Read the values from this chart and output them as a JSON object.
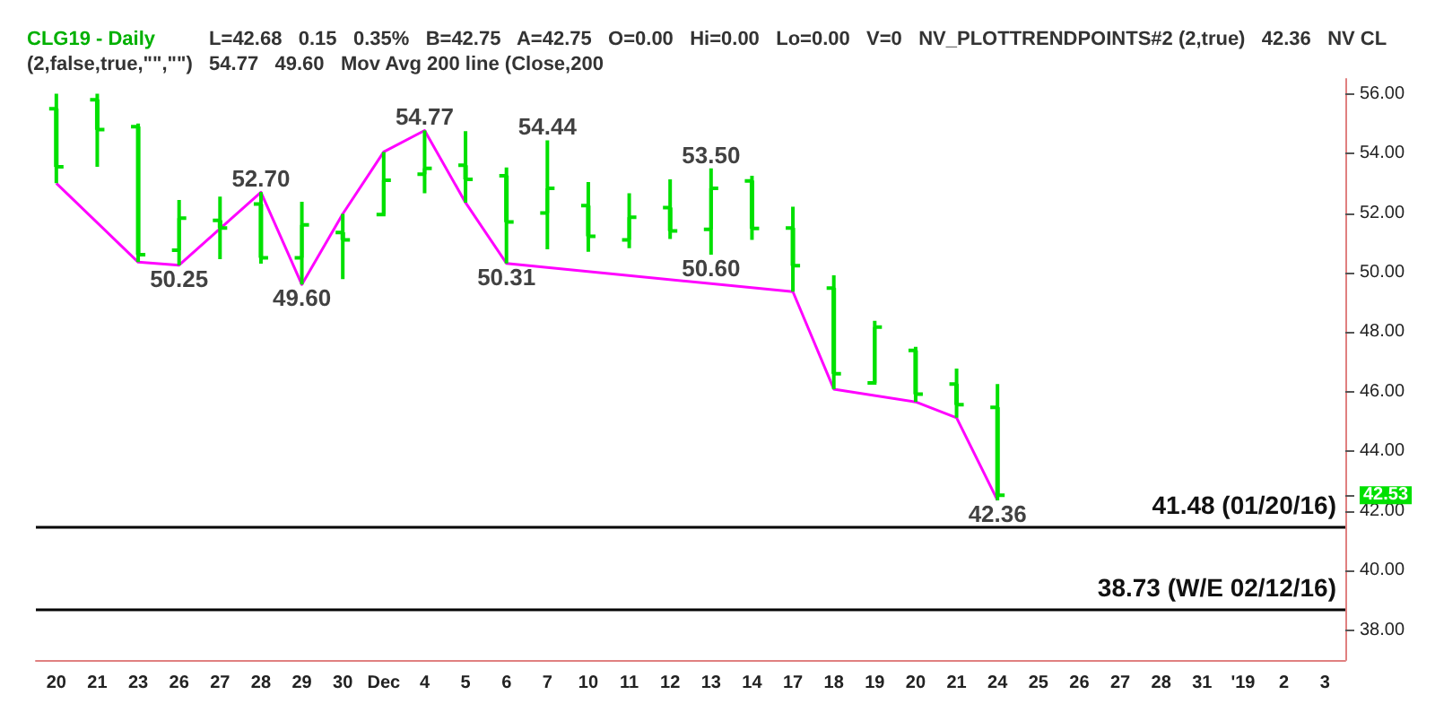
{
  "chart_data": {
    "type": "candlestick",
    "title": "CLG19 - Daily",
    "categories": [
      "20",
      "21",
      "23",
      "26",
      "27",
      "28",
      "29",
      "30",
      "Dec",
      "4",
      "5",
      "6",
      "7",
      "10",
      "11",
      "12",
      "13",
      "14",
      "17",
      "18",
      "19",
      "20",
      "21",
      "24",
      "25",
      "26",
      "27",
      "28",
      "31",
      "'19",
      "2",
      "3"
    ],
    "series": [
      {
        "color": "#00e000",
        "ohlc": [
          [
            55.5,
            56.0,
            53.0,
            53.55
          ],
          [
            55.8,
            56.0,
            53.55,
            54.8
          ],
          [
            54.9,
            55.0,
            50.35,
            50.6
          ],
          [
            50.75,
            52.44,
            50.25,
            51.83
          ],
          [
            51.75,
            52.55,
            50.45,
            51.5
          ],
          [
            52.3,
            52.7,
            50.3,
            50.5
          ],
          [
            50.5,
            52.38,
            49.6,
            51.6
          ],
          [
            51.35,
            51.97,
            49.78,
            51.1
          ],
          [
            51.95,
            54.05,
            51.9,
            53.1
          ],
          [
            53.3,
            54.77,
            52.66,
            53.5
          ],
          [
            53.6,
            54.75,
            52.35,
            53.13
          ],
          [
            53.25,
            53.53,
            50.31,
            51.7
          ],
          [
            52.0,
            54.44,
            50.78,
            52.83
          ],
          [
            52.25,
            53.04,
            50.7,
            51.22
          ],
          [
            51.1,
            52.66,
            50.82,
            51.86
          ],
          [
            52.18,
            53.13,
            51.13,
            51.4
          ],
          [
            51.45,
            53.5,
            50.6,
            52.83
          ],
          [
            53.08,
            53.25,
            51.1,
            51.48
          ],
          [
            51.5,
            52.21,
            49.36,
            50.23
          ],
          [
            49.48,
            49.91,
            46.09,
            46.61
          ],
          [
            46.3,
            48.38,
            46.28,
            48.17
          ],
          [
            47.39,
            47.51,
            45.66,
            45.92
          ],
          [
            46.26,
            46.78,
            45.13,
            45.57
          ],
          [
            45.48,
            46.26,
            42.36,
            42.53
          ],
          null,
          null,
          null,
          null,
          null,
          null,
          null,
          null
        ]
      },
      {
        "type": "line",
        "color": "#ff00ff",
        "values": [
          53.0,
          null,
          50.35,
          50.25,
          null,
          52.7,
          49.6,
          51.97,
          54.05,
          54.77,
          52.35,
          50.31,
          null,
          null,
          null,
          null,
          null,
          null,
          49.36,
          46.09,
          null,
          45.66,
          45.13,
          42.36,
          null,
          null,
          null,
          null,
          null,
          null,
          null,
          null
        ]
      }
    ],
    "marker": "none",
    "ylim": [
      37,
      56.5
    ],
    "yticks": [
      {
        "value": 38,
        "label": "38.00"
      },
      {
        "value": 40,
        "label": "40.00"
      },
      {
        "value": 42,
        "label": "42.00"
      },
      {
        "value": 42.53,
        "label": "42.53"
      },
      {
        "value": 44,
        "label": "44.00"
      },
      {
        "value": 46,
        "label": "46.00"
      },
      {
        "value": 48,
        "label": "48.00"
      },
      {
        "value": 50,
        "label": "50.00"
      },
      {
        "value": 52,
        "label": "52.00"
      },
      {
        "value": 54,
        "label": "54.00"
      },
      {
        "value": 56,
        "label": "56.00"
      }
    ],
    "ref_lines": [
      {
        "axis": "y",
        "value": 41.48,
        "label": "41.48 (01/20/16)",
        "color": "#000000"
      },
      {
        "axis": "y",
        "value": 38.73,
        "label": "38.73 (W/E 02/12/16)",
        "color": "#000000"
      }
    ],
    "annotations": [
      "L=42.68",
      "0.15",
      "0.35%",
      "B=42.75",
      "A=42.75",
      "O=0.00",
      "Hi=0.00",
      "Lo=0.00",
      "V=0",
      "NV_PLOTTRENDPOINTS#2 (2,true)",
      "42.36",
      "NV CL (2,false,true,\"\",\"\")",
      "54.77",
      "49.60",
      "Mov Avg 200 line (Close,200",
      {
        "text": "50.25",
        "x": "26",
        "y": 50.25
      },
      {
        "text": "52.70",
        "x": "28",
        "y": 52.7
      },
      {
        "text": "49.60",
        "x": "29",
        "y": 49.6
      },
      {
        "text": "54.77",
        "x": "4",
        "y": 54.77
      },
      {
        "text": "50.31",
        "x": "6",
        "y": 50.31
      },
      {
        "text": "54.44",
        "x": "7",
        "y": 54.44
      },
      {
        "text": "53.50",
        "x": "13",
        "y": 53.5
      },
      {
        "text": "50.60",
        "x": "13",
        "y": 50.6
      },
      {
        "text": "42.36",
        "x": "24",
        "y": 42.36
      }
    ]
  }
}
